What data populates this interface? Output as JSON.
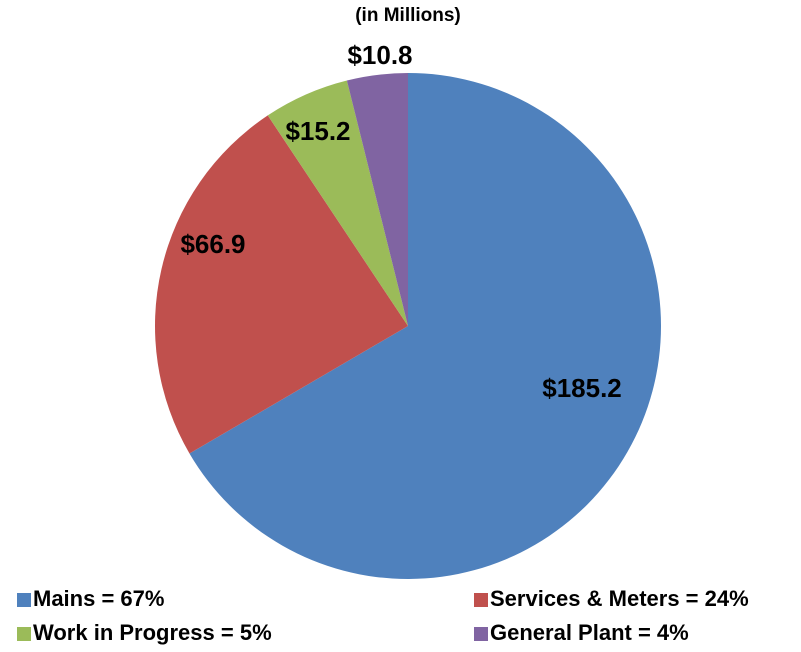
{
  "chart_data": {
    "type": "pie",
    "title": "(in Millions)",
    "categories": [
      "Mains = 67%",
      "Services & Meters = 24%",
      "Work in Progress = 5%",
      "General Plant = 4%"
    ],
    "values": [
      185.2,
      66.9,
      15.2,
      10.8
    ],
    "value_labels": [
      "$185.2",
      "$66.9",
      "$15.2",
      "$10.8"
    ],
    "colors": [
      "#4f81bd",
      "#c0504d",
      "#9bbb59",
      "#8064a2"
    ],
    "legend": "bottom"
  }
}
